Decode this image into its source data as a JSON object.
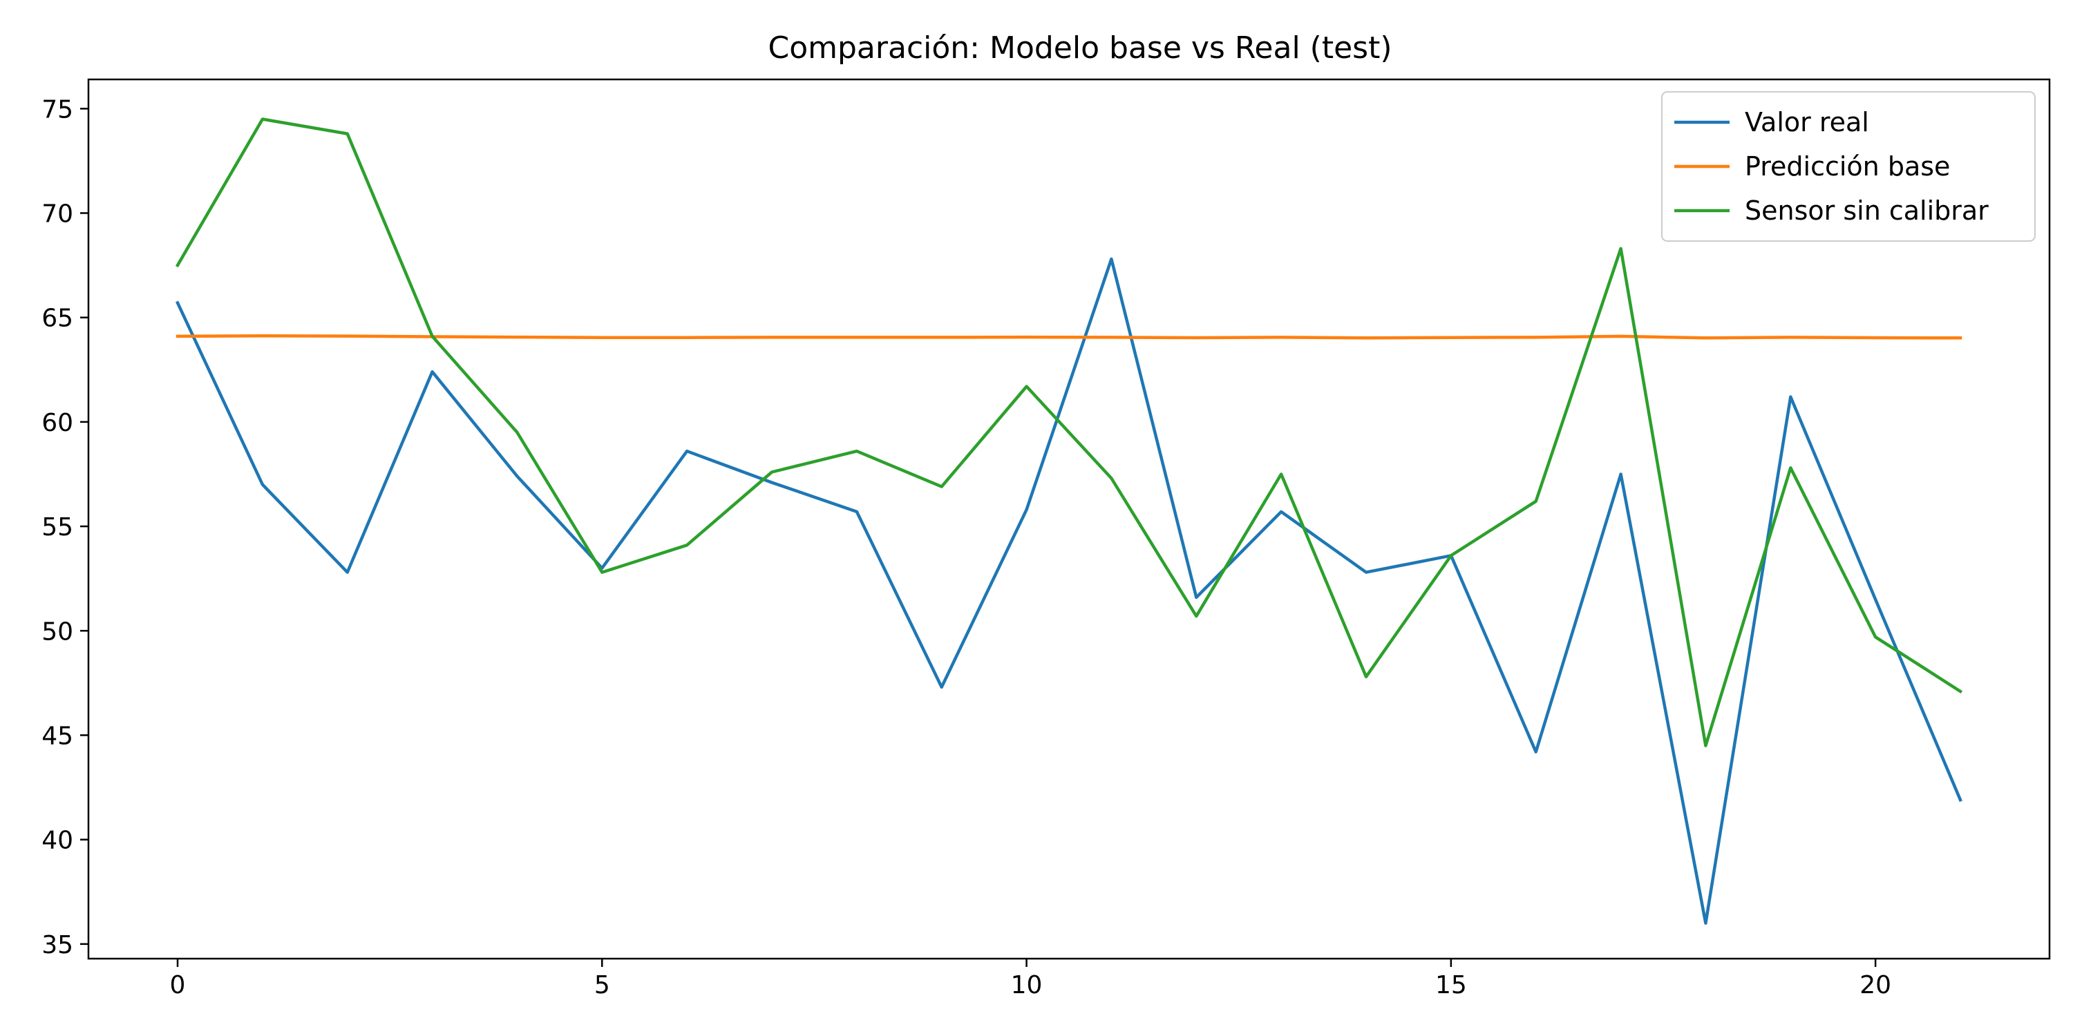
{
  "chart_data": {
    "type": "line",
    "title": "Comparación: Modelo base vs Real (test)",
    "xlabel": "",
    "ylabel": "",
    "xlim": [
      -1.05,
      22.05
    ],
    "ylim": [
      34.3,
      76.4
    ],
    "x": [
      0,
      1,
      2,
      3,
      4,
      5,
      6,
      7,
      8,
      9,
      10,
      11,
      12,
      13,
      14,
      15,
      16,
      17,
      18,
      19,
      20,
      21
    ],
    "x_ticks": [
      0,
      5,
      10,
      15,
      20
    ],
    "y_ticks": [
      35,
      40,
      45,
      50,
      55,
      60,
      65,
      70,
      75
    ],
    "grid": false,
    "legend_position": "top-right",
    "series": [
      {
        "name": "Valor real",
        "color": "#1f77b4",
        "values": [
          65.7,
          57.0,
          52.8,
          62.4,
          57.4,
          53.0,
          58.6,
          57.1,
          55.7,
          47.3,
          55.8,
          67.8,
          51.6,
          55.7,
          52.8,
          53.6,
          44.2,
          57.5,
          36.0,
          61.2,
          51.5,
          41.9
        ]
      },
      {
        "name": "Predicción base",
        "color": "#ff7f0e",
        "values": [
          64.1,
          64.12,
          64.11,
          64.08,
          64.06,
          64.04,
          64.04,
          64.05,
          64.05,
          64.05,
          64.06,
          64.05,
          64.03,
          64.05,
          64.02,
          64.04,
          64.05,
          64.1,
          64.02,
          64.05,
          64.03,
          64.02
        ]
      },
      {
        "name": "Sensor sin calibrar",
        "color": "#2ca02c",
        "values": [
          67.5,
          74.5,
          73.8,
          64.1,
          59.5,
          52.8,
          54.1,
          57.6,
          58.6,
          56.9,
          61.7,
          57.3,
          50.7,
          57.5,
          47.8,
          53.6,
          56.2,
          68.3,
          44.5,
          57.8,
          49.7,
          47.1
        ]
      }
    ]
  }
}
